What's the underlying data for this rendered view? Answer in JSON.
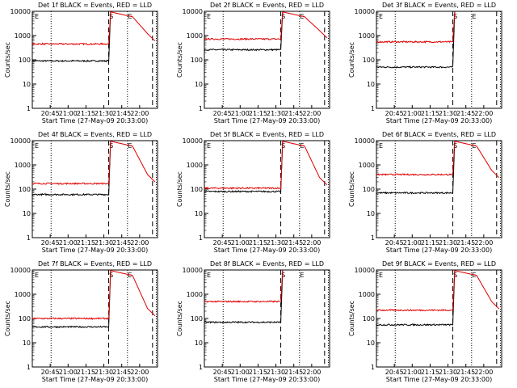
{
  "chart_data": [
    {
      "type": "line",
      "title": "Det 1f BLACK = Events, RED = LLD",
      "xlabel": "Start Time (27-May-09 20:33:00)",
      "ylabel": "Counts/sec",
      "yscale": "log",
      "ylim": [
        1,
        10000
      ],
      "xlim": [
        0,
        100
      ],
      "xtick_labels": [
        "20:45",
        "21:00",
        "21:15",
        "21:30",
        "21:45",
        "22:00"
      ],
      "ytick_labels": [
        "1",
        "10",
        "100",
        "1000",
        "10000"
      ],
      "markers": [
        "S",
        "E"
      ],
      "series": [
        {
          "color": "#000000",
          "level": 90,
          "final": 0
        },
        {
          "color": "#e00000",
          "level": 450,
          "final": 600
        }
      ],
      "rise_at": 61
    },
    {
      "type": "line",
      "title": "Det 2f BLACK = Events, RED = LLD",
      "xlabel": "Start Time (27-May-09 20:33:00)",
      "ylabel": "Counts/sec",
      "yscale": "log",
      "ylim": [
        1,
        10000
      ],
      "xlim": [
        0,
        100
      ],
      "xtick_labels": [
        "20:45",
        "21:00",
        "21:15",
        "21:30",
        "21:45",
        "22:00"
      ],
      "ytick_labels": [
        "1",
        "10",
        "100",
        "1000",
        "10000"
      ],
      "markers": [
        "S",
        "E"
      ],
      "series": [
        {
          "color": "#000000",
          "level": 260,
          "final": 0
        },
        {
          "color": "#e00000",
          "level": 720,
          "final": 800
        }
      ],
      "rise_at": 61
    },
    {
      "type": "line",
      "title": "Det 3f BLACK = Events, RED = LLD",
      "xlabel": "Start Time (27-May-09 20:33:00)",
      "ylabel": "Counts/sec",
      "yscale": "log",
      "ylim": [
        1,
        10000
      ],
      "xlim": [
        0,
        100
      ],
      "xtick_labels": [
        "20:45",
        "21:00",
        "21:15",
        "21:30",
        "21:45",
        "22:00"
      ],
      "ytick_labels": [
        "1",
        "10",
        "100",
        "1000",
        "10000"
      ],
      "markers": [
        "S",
        "E"
      ],
      "series": [
        {
          "color": "#000000",
          "level": 50,
          "final": 0
        },
        {
          "color": "#e00000",
          "level": 550,
          "final": 0
        }
      ],
      "rise_at": 61
    },
    {
      "type": "line",
      "title": "Det 4f BLACK = Events, RED = LLD",
      "xlabel": "Start Time (27-May-09 20:33:00)",
      "ylabel": "Counts/sec",
      "yscale": "log",
      "ylim": [
        1,
        10000
      ],
      "xlim": [
        0,
        100
      ],
      "xtick_labels": [
        "20:45",
        "21:00",
        "21:15",
        "21:30",
        "21:45",
        "22:00"
      ],
      "ytick_labels": [
        "1",
        "10",
        "100",
        "1000",
        "10000"
      ],
      "markers": [
        "S",
        "E"
      ],
      "series": [
        {
          "color": "#000000",
          "level": 60,
          "final": 0
        },
        {
          "color": "#e00000",
          "level": 170,
          "final": 200
        }
      ],
      "rise_at": 61
    },
    {
      "type": "line",
      "title": "Det 5f BLACK = Events, RED = LLD",
      "xlabel": "Start Time (27-May-09 20:33:00)",
      "ylabel": "Counts/sec",
      "yscale": "log",
      "ylim": [
        1,
        10000
      ],
      "xlim": [
        0,
        100
      ],
      "xtick_labels": [
        "20:45",
        "21:00",
        "21:15",
        "21:30",
        "21:45",
        "22:00"
      ],
      "ytick_labels": [
        "1",
        "10",
        "100",
        "1000",
        "10000"
      ],
      "markers": [
        "S",
        "E"
      ],
      "series": [
        {
          "color": "#000000",
          "level": 80,
          "final": 0
        },
        {
          "color": "#e00000",
          "level": 110,
          "final": 150
        }
      ],
      "rise_at": 61
    },
    {
      "type": "line",
      "title": "Det 6f BLACK = Events, RED = LLD",
      "xlabel": "Start Time (27-May-09 20:33:00)",
      "ylabel": "Counts/sec",
      "yscale": "log",
      "ylim": [
        1,
        10000
      ],
      "xlim": [
        0,
        100
      ],
      "xtick_labels": [
        "20:45",
        "21:00",
        "21:15",
        "21:30",
        "21:45",
        "22:00"
      ],
      "ytick_labels": [
        "1",
        "10",
        "100",
        "1000",
        "10000"
      ],
      "markers": [
        "S",
        "E"
      ],
      "series": [
        {
          "color": "#000000",
          "level": 70,
          "final": 0
        },
        {
          "color": "#e00000",
          "level": 400,
          "final": 300
        }
      ],
      "rise_at": 61
    },
    {
      "type": "line",
      "title": "Det 7f BLACK = Events, RED = LLD",
      "xlabel": "Start Time (27-May-09 20:33:00)",
      "ylabel": "Counts/sec",
      "yscale": "log",
      "ylim": [
        1,
        10000
      ],
      "xlim": [
        0,
        100
      ],
      "xtick_labels": [
        "20:45",
        "21:00",
        "21:15",
        "21:30",
        "21:45",
        "22:00"
      ],
      "ytick_labels": [
        "1",
        "10",
        "100",
        "1000",
        "10000"
      ],
      "markers": [
        "S",
        "E"
      ],
      "series": [
        {
          "color": "#000000",
          "level": 45,
          "final": 0
        },
        {
          "color": "#e00000",
          "level": 100,
          "final": 130
        }
      ],
      "rise_at": 61
    },
    {
      "type": "line",
      "title": "Det 8f BLACK = Events, RED = LLD",
      "xlabel": "Start Time (27-May-09 20:33:00)",
      "ylabel": "Counts/sec",
      "yscale": "log",
      "ylim": [
        1,
        10000
      ],
      "xlim": [
        0,
        100
      ],
      "xtick_labels": [
        "20:45",
        "21:00",
        "21:15",
        "21:30",
        "21:45",
        "22:00"
      ],
      "ytick_labels": [
        "1",
        "10",
        "100",
        "1000",
        "10000"
      ],
      "markers": [
        "S",
        "E"
      ],
      "series": [
        {
          "color": "#000000",
          "level": 70,
          "final": 0
        },
        {
          "color": "#e00000",
          "level": 500,
          "final": 0
        }
      ],
      "rise_at": 61
    },
    {
      "type": "line",
      "title": "Det 9f BLACK = Events, RED = LLD",
      "xlabel": "Start Time (27-May-09 20:33:00)",
      "ylabel": "Counts/sec",
      "yscale": "log",
      "ylim": [
        1,
        10000
      ],
      "xlim": [
        0,
        100
      ],
      "xtick_labels": [
        "20:45",
        "21:00",
        "21:15",
        "21:30",
        "21:45",
        "22:00"
      ],
      "ytick_labels": [
        "1",
        "10",
        "100",
        "1000",
        "10000"
      ],
      "markers": [
        "S",
        "E"
      ],
      "series": [
        {
          "color": "#000000",
          "level": 55,
          "final": 0
        },
        {
          "color": "#e00000",
          "level": 220,
          "final": 250
        }
      ],
      "rise_at": 61
    }
  ]
}
